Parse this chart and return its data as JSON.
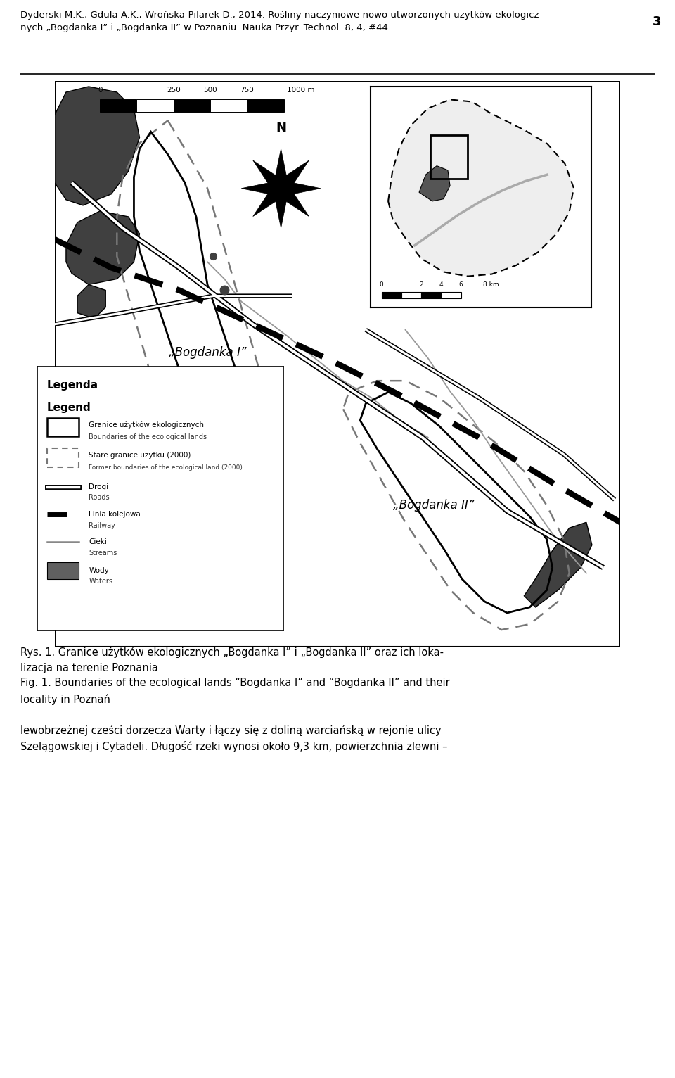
{
  "page_number": "3",
  "header_text": "Dyderski M.K., Gdula A.K., Wrońska-Pilarek D., 2014. Rośliny naczyniowe nowo utworzonych użytków ekologicz-\nnych „Bogdanka I” i „Bogdanka II” w Poznaniu. Nauka Przyr. Technol. 8, 4, #44.",
  "caption_pl": "Rys. 1. Granice użytków ekologicznych „Bogdanka I” i „Bogdanka II” oraz ich loka-\nlizacja na terenie Poznania",
  "caption_en": "Fig. 1. Boundaries of the ecological lands “Bogdanka I” and “Bogdanka II” and their\nlocality in Poznań",
  "caption_text3": "lewobrzeżnej cześci dorzecza Warty i łączy się z doliną warciańską w rejonie ulicy\nSzelągowskiej i Cytadeli. Długość rzeki wynosi około 9,3 km, powierzchnia zlewni –",
  "legend_title_pl": "Legenda",
  "legend_title_en": "Legend",
  "legend_items": [
    {
      "label_pl": "Granice użytków ekologicznych",
      "label_en": "Boundaries of the ecological lands",
      "type": "solid_rect"
    },
    {
      "label_pl": "Stare granice użytku (2000)",
      "label_en": "Former boundaries of the ecological land (2000)",
      "type": "dashed_rect"
    },
    {
      "label_pl": "Drogi",
      "label_en": "Roads",
      "type": "double_line"
    },
    {
      "label_pl": "Linia kolejowa",
      "label_en": "Railway",
      "type": "railway"
    },
    {
      "label_pl": "Cieki",
      "label_en": "Streams",
      "type": "thin_line"
    },
    {
      "label_pl": "Wody",
      "label_en": "Waters",
      "type": "gray_rect"
    }
  ],
  "bg_color": "#ffffff",
  "map_bg": "#ffffff",
  "border_color": "#000000",
  "text_color": "#000000",
  "dark_gray": "#404040",
  "medium_gray": "#808080",
  "light_gray": "#aaaaaa"
}
